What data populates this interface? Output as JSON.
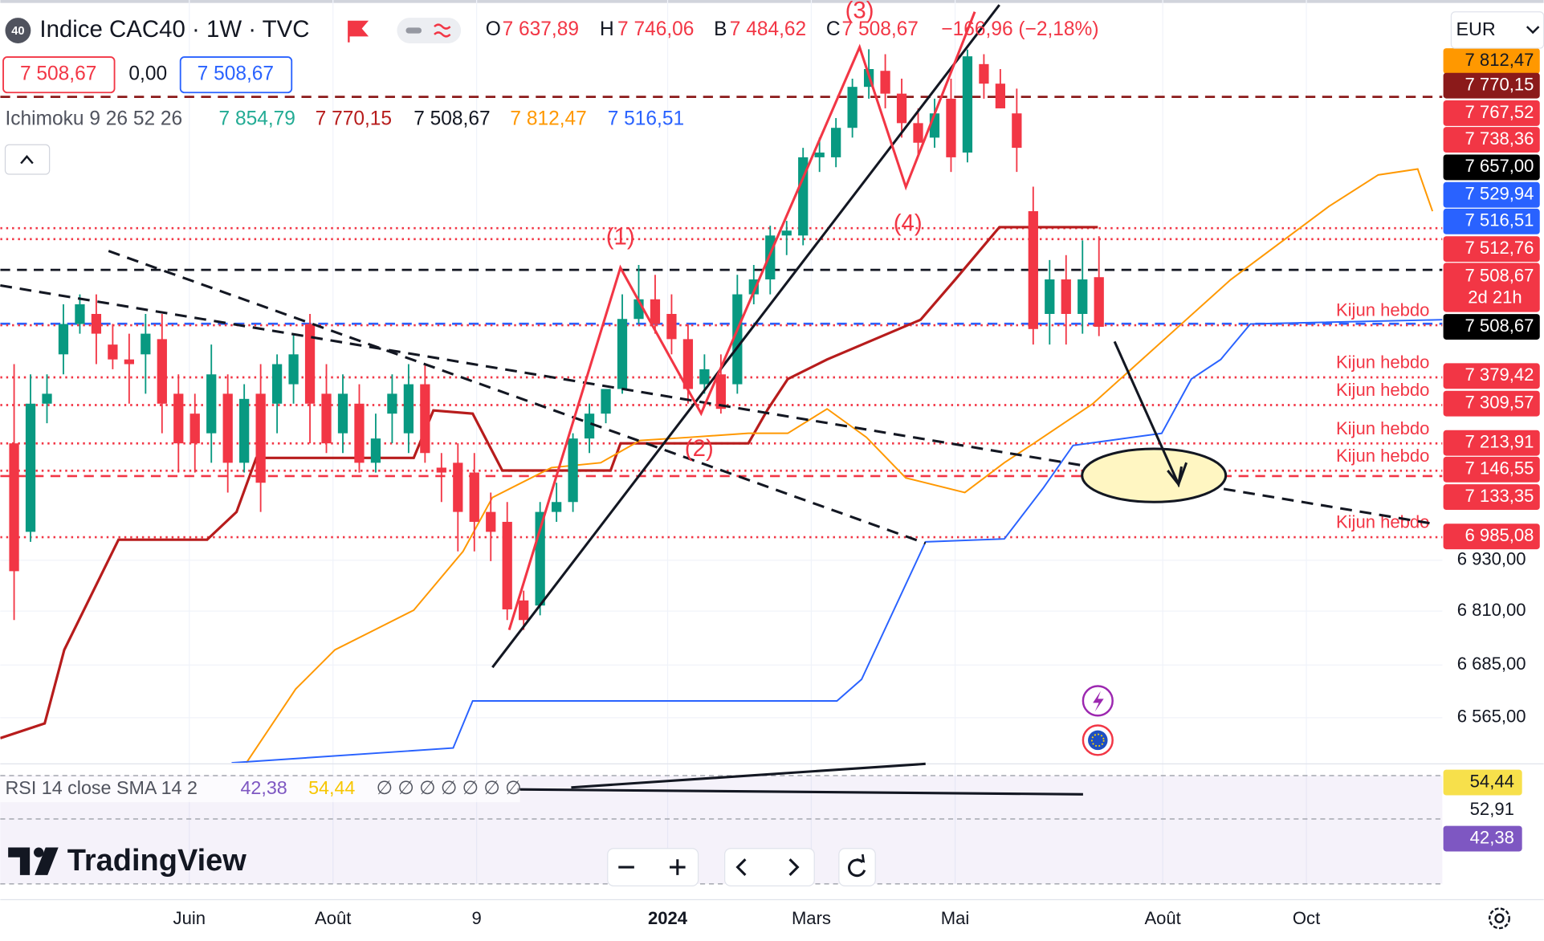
{
  "header": {
    "badge": "40",
    "title": "Indice CAC40 · 1W · TVC",
    "ohlc": [
      {
        "key": "O",
        "value": "7 637,89"
      },
      {
        "key": "H",
        "value": "7 746,06"
      },
      {
        "key": "B",
        "value": "7 484,62"
      },
      {
        "key": "C",
        "value": "7 508,67"
      }
    ],
    "change": "−166,96 (−2,18%)",
    "price_boxes": [
      "7 508,67",
      "0,00",
      "7 508,67"
    ],
    "indicator": {
      "name": "Ichimoku 9 26 52 26",
      "values": [
        {
          "text": "7 854,79",
          "color": "#22ab94"
        },
        {
          "text": "7 770,15",
          "color": "#b71c1c"
        },
        {
          "text": "7 508,67",
          "color": "#131722"
        },
        {
          "text": "7 812,47",
          "color": "#ff9800"
        },
        {
          "text": "7 516,51",
          "color": "#2962ff"
        }
      ]
    },
    "currency": "EUR"
  },
  "chart_data": {
    "type": "candlestick",
    "log": true,
    "grid": true,
    "up_color": "#089981",
    "down_color": "#f23645",
    "ylim": [
      6464,
      8401
    ],
    "yticks": [
      {
        "value": 6930,
        "label": "6 930,00"
      },
      {
        "value": 6810,
        "label": "6 810,00"
      },
      {
        "value": 6685,
        "label": "6 685,00"
      },
      {
        "value": 6565,
        "label": "6 565,00"
      }
    ],
    "xlim": [
      -0.84,
      86.89
    ],
    "xticks": [
      {
        "value": 10.66,
        "label": "Juin"
      },
      {
        "value": 19.4,
        "label": "Août"
      },
      {
        "value": 28.14,
        "label": "9"
      },
      {
        "value": 39.76,
        "label": "2024",
        "bold": true
      },
      {
        "value": 48.5,
        "label": "Mars"
      },
      {
        "value": 57.25,
        "label": "Mai"
      },
      {
        "value": 69.88,
        "label": "Août"
      },
      {
        "value": 78.62,
        "label": "Oct"
      }
    ],
    "candles": {
      "open": [
        7214,
        6998,
        7313,
        7438,
        7516,
        7542,
        7463,
        7425,
        7438,
        7477,
        7338,
        7288,
        7239,
        7338,
        7166,
        7338,
        7313,
        7362,
        7516,
        7338,
        7239,
        7313,
        7166,
        7288,
        7239,
        7362,
        7154,
        7166,
        7142,
        7046,
        7022,
        6835,
        6823,
        7046,
        7070,
        7226,
        7288,
        7350,
        7529,
        7580,
        7542,
        7477,
        7362,
        7387,
        7362,
        7593,
        7632,
        7748,
        7748,
        7959,
        7959,
        8040,
        8154,
        8199,
        8135,
        8053,
        8013,
        8121,
        7972,
        8218,
        8163,
        8080,
        7813,
        7542,
        7632,
        7542,
        7637.89
      ],
      "high": [
        7413,
        7387,
        7387,
        7567,
        7593,
        7593,
        7516,
        7491,
        7542,
        7542,
        7387,
        7338,
        7463,
        7387,
        7362,
        7413,
        7438,
        7491,
        7542,
        7413,
        7387,
        7362,
        7288,
        7387,
        7413,
        7413,
        7190,
        7214,
        7190,
        7093,
        7070,
        6858,
        7070,
        7117,
        7239,
        7313,
        7350,
        7593,
        7670,
        7644,
        7593,
        7516,
        7438,
        7438,
        7644,
        7670,
        7774,
        7787,
        7985,
        8013,
        8067,
        8177,
        8260,
        8246,
        8177,
        8094,
        8121,
        8177,
        8259,
        8246,
        8204,
        8149,
        7879,
        7683,
        7696,
        7735,
        7746.06
      ],
      "low": [
        6789,
        6974,
        7264,
        7387,
        7491,
        7413,
        7400,
        7313,
        7338,
        7239,
        7142,
        7142,
        7166,
        7093,
        7142,
        7046,
        7239,
        7313,
        7214,
        7190,
        7190,
        7142,
        7142,
        7214,
        7190,
        7166,
        7070,
        6951,
        6951,
        6928,
        6789,
        6766,
        6800,
        7022,
        7046,
        7190,
        7264,
        7338,
        7516,
        7491,
        7438,
        7313,
        7338,
        7288,
        7338,
        7567,
        7593,
        7696,
        7722,
        7919,
        7932,
        8013,
        8121,
        8094,
        8013,
        7959,
        7985,
        7919,
        7945,
        8121,
        8094,
        7919,
        7463,
        7463,
        7463,
        7491,
        7484.62
      ],
      "close": [
        6904,
        7313,
        7338,
        7516,
        7567,
        7491,
        7425,
        7413,
        7491,
        7313,
        7214,
        7214,
        7387,
        7166,
        7325,
        7117,
        7413,
        7438,
        7313,
        7214,
        7338,
        7166,
        7226,
        7338,
        7362,
        7190,
        7142,
        7046,
        7022,
        6998,
        6814,
        6789,
        7046,
        7070,
        7226,
        7288,
        7350,
        7529,
        7580,
        7516,
        7477,
        7350,
        7400,
        7300,
        7593,
        7632,
        7748,
        7761,
        7959,
        7972,
        8040,
        8154,
        8204,
        8135,
        8053,
        7999,
        8080,
        7959,
        8240,
        8163,
        8094,
        7985,
        7503,
        7632,
        7542,
        7632,
        7508.67
      ]
    },
    "series": [
      {
        "color": "#b71c1c",
        "x": [
          -0.84,
          1.86,
          3.05,
          6.35,
          11.74,
          13.53,
          14.73,
          24.31,
          25.51,
          27.9,
          29.7,
          36.29,
          36.89,
          44.67,
          45.87,
          47.07,
          49.46,
          55.15,
          57.25,
          59.94,
          65.93
        ],
        "values": [
          6519,
          6552,
          6720,
          6979,
          6979,
          7046,
          7178,
          7178,
          7296,
          7288,
          7147,
          7147,
          7214,
          7214,
          7300,
          7375,
          7425,
          7527,
          7631,
          7770.15,
          7770.15
        ]
      },
      {
        "color": "#ff9800",
        "x": [
          14.13,
          17.13,
          19.52,
          21.92,
          24.31,
          27.31,
          29.1,
          32.69,
          35.69,
          38.08,
          41.08,
          44.67,
          47.07,
          49.46,
          51.86,
          54.25,
          57.84,
          60.24,
          62.04,
          65.63,
          71.02,
          74.01,
          80.0,
          82.99,
          85.39,
          86.29
        ],
        "values": [
          6464,
          6630,
          6720,
          6766,
          6812,
          6951,
          7081,
          7154,
          7166,
          7221,
          7229,
          7239,
          7239,
          7300,
          7229,
          7129,
          7093,
          7166,
          7214,
          7313,
          7516,
          7631,
          7826,
          7911,
          7927,
          7813
        ]
      },
      {
        "color": "#2962ff",
        "x": [
          13.23,
          26.71,
          27.9,
          50.06,
          51.56,
          55.45,
          60.24,
          62.63,
          64.43,
          69.82,
          71.62,
          73.41,
          75.21,
          86.89
        ],
        "values": [
          6464,
          6497,
          6603,
          6603,
          6652,
          6974,
          6981,
          7105,
          7209,
          7239,
          7375,
          7425,
          7516,
          7527
        ]
      }
    ],
    "levels": [
      {
        "value": 8126,
        "color": "#8b1a1a",
        "style": "dashed"
      },
      {
        "value": 7767.52,
        "color": "#f23645",
        "style": "dotted"
      },
      {
        "value": 7738.36,
        "color": "#f23645",
        "style": "dotted"
      },
      {
        "value": 7657,
        "color": "#131722",
        "style": "dashed"
      },
      {
        "value": 7516.51,
        "color": "#2962ff",
        "style": "dashed"
      },
      {
        "value": 7512.76,
        "color": "#f23645",
        "style": "dotted",
        "label": "Kijun hebdo"
      },
      {
        "value": 7379.42,
        "color": "#f23645",
        "style": "dotted",
        "label": "Kijun hebdo"
      },
      {
        "value": 7309.57,
        "color": "#f23645",
        "style": "dotted",
        "label": "Kijun hebdo"
      },
      {
        "value": 7213.91,
        "color": "#f23645",
        "style": "dotted",
        "label": "Kijun hebdo"
      },
      {
        "value": 7146.55,
        "color": "#f23645",
        "style": "dotted",
        "label": "Kijun hebdo"
      },
      {
        "value": 7133.35,
        "color": "#f23645",
        "style": "dashed"
      },
      {
        "value": 6985.08,
        "color": "#f23645",
        "style": "dotted",
        "label": "Kijun hebdo"
      }
    ],
    "annotations": [
      "(1)",
      "(2)",
      "(3)",
      "(4)"
    ],
    "price_badges": [
      {
        "label": "7 812,47",
        "bg": "#ff9800",
        "fg": "#131722"
      },
      {
        "label": "7 770,15",
        "bg": "#8b1a1a",
        "fg": "#ffffff"
      },
      {
        "label": "7 767,52",
        "bg": "#f23645",
        "fg": "#ffffff"
      },
      {
        "label": "7 738,36",
        "bg": "#f23645",
        "fg": "#ffffff"
      },
      {
        "label": "7 657,00",
        "bg": "#000000",
        "fg": "#ffffff"
      },
      {
        "label": "7 529,94",
        "bg": "#2962ff",
        "fg": "#ffffff"
      },
      {
        "label": "7 516,51",
        "bg": "#2962ff",
        "fg": "#ffffff"
      },
      {
        "label": "7 512,76",
        "bg": "#f23645",
        "fg": "#ffffff"
      },
      {
        "label": "7 508,67",
        "sub": "2d 21h",
        "bg": "#f23645",
        "fg": "#ffffff"
      },
      {
        "label": "7 508,67",
        "bg": "#000000",
        "fg": "#ffffff"
      },
      {
        "label": "7 379,42",
        "bg": "#f23645",
        "fg": "#ffffff"
      },
      {
        "label": "7 309,57",
        "bg": "#f23645",
        "fg": "#ffffff"
      },
      {
        "label": "7 213,91",
        "bg": "#f23645",
        "fg": "#ffffff"
      },
      {
        "label": "7 146,55",
        "bg": "#f23645",
        "fg": "#ffffff"
      },
      {
        "label": "7 133,35",
        "bg": "#f23645",
        "fg": "#ffffff"
      },
      {
        "label": "6 985,08",
        "bg": "#f23645",
        "fg": "#ffffff"
      }
    ]
  },
  "rsi": {
    "legend": "RSI 14 close SMA 14 2",
    "values": [
      "42,38",
      "54,44"
    ],
    "nan_values": "∅ ∅ ∅ ∅ ∅ ∅ ∅",
    "badges": [
      {
        "label": "54,44",
        "bg": "#f7e04b",
        "fg": "#131722"
      },
      {
        "label": "52,91",
        "bg": "#ffffff",
        "fg": "#131722"
      },
      {
        "label": "42,38",
        "bg": "#7e57c2",
        "fg": "#ffffff"
      }
    ]
  },
  "logo": "TradingView"
}
